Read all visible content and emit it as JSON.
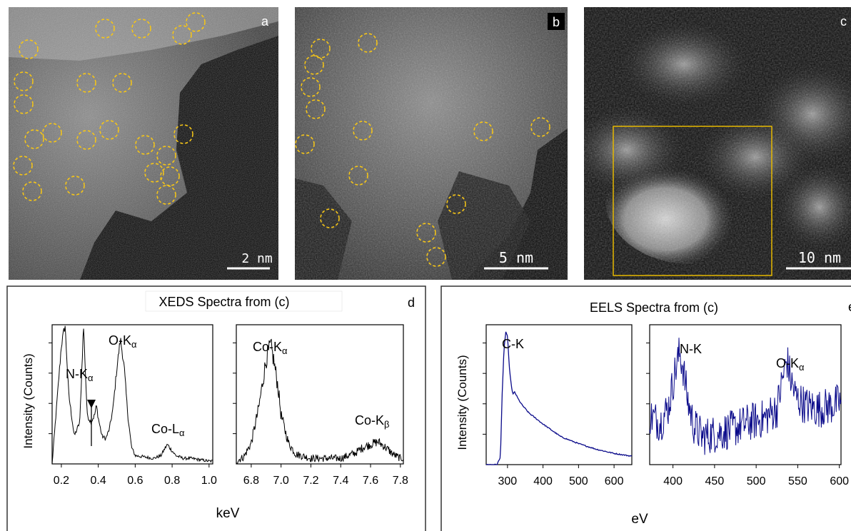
{
  "panels": {
    "a": {
      "letter": "a",
      "scale": "2 nm"
    },
    "b": {
      "letter": "b",
      "scale": "5 nm"
    },
    "c": {
      "letter": "c",
      "scale": "10 nm"
    },
    "d": {
      "letter": "d",
      "title": "XEDS Spectra from (c)"
    },
    "e": {
      "letter": "e",
      "title": "EELS Spectra from (c)"
    }
  },
  "colors": {
    "circle": "#f5c518",
    "box": "#e6b800",
    "eels_line": "#0a0a8a",
    "xeds_line": "#000000"
  },
  "chart_data": [
    {
      "type": "line",
      "panel": "d-left",
      "ylabel": "Intensity (Counts)",
      "xlabel": "keV",
      "xlim": [
        0.15,
        1.02
      ],
      "xticks": [
        "0.2",
        "0.4",
        "0.6",
        "0.8",
        "1.0"
      ],
      "annotations": [
        {
          "label": "N-Kα",
          "base": "N-K",
          "sub": "α",
          "x": 0.39
        },
        {
          "label": "O-Kα",
          "base": "O-K",
          "sub": "α",
          "x": 0.525
        },
        {
          "label": "Co-Lα",
          "base": "Co-L",
          "sub": "α",
          "x": 0.775
        }
      ],
      "x": [
        0.15,
        0.2,
        0.22,
        0.24,
        0.27,
        0.3,
        0.32,
        0.34,
        0.36,
        0.38,
        0.39,
        0.4,
        0.42,
        0.44,
        0.46,
        0.48,
        0.5,
        0.52,
        0.53,
        0.54,
        0.56,
        0.58,
        0.6,
        0.65,
        0.7,
        0.74,
        0.76,
        0.775,
        0.79,
        0.82,
        0.86,
        0.9,
        0.95,
        1.0
      ],
      "y": [
        0,
        0.85,
        1.0,
        0.5,
        0.2,
        0.3,
        1.0,
        0.35,
        0.3,
        0.35,
        0.42,
        0.33,
        0.2,
        0.18,
        0.25,
        0.4,
        0.68,
        0.9,
        0.8,
        0.7,
        0.35,
        0.12,
        0.06,
        0.05,
        0.04,
        0.06,
        0.11,
        0.14,
        0.11,
        0.06,
        0.04,
        0.04,
        0.03,
        0.02
      ]
    },
    {
      "type": "line",
      "panel": "d-right",
      "xlim": [
        6.7,
        7.82
      ],
      "xticks": [
        "6.8",
        "7.0",
        "7.2",
        "7.4",
        "7.6",
        "7.8"
      ],
      "annotations": [
        {
          "label": "Co-Kα",
          "base": "Co-K",
          "sub": "α",
          "x": 6.93
        },
        {
          "label": "Co-Kβ",
          "base": "Co-K",
          "sub": "β",
          "x": 7.64
        }
      ],
      "x": [
        6.7,
        6.75,
        6.8,
        6.85,
        6.9,
        6.93,
        6.95,
        6.98,
        7.0,
        7.05,
        7.1,
        7.2,
        7.3,
        7.4,
        7.5,
        7.55,
        7.6,
        7.65,
        7.7,
        7.75,
        7.8
      ],
      "y": [
        0.02,
        0.05,
        0.15,
        0.4,
        0.75,
        0.85,
        0.75,
        0.55,
        0.35,
        0.15,
        0.07,
        0.04,
        0.04,
        0.04,
        0.08,
        0.12,
        0.14,
        0.16,
        0.12,
        0.07,
        0.04
      ]
    },
    {
      "type": "line",
      "panel": "e-left",
      "ylabel": "Intensity (Counts)",
      "xlabel": "eV",
      "xlim": [
        240,
        650
      ],
      "xticks": [
        "300",
        "400",
        "500",
        "600"
      ],
      "annotations": [
        {
          "label": "C-K",
          "base": "C-K",
          "sub": "",
          "x": 300
        }
      ],
      "x": [
        250,
        270,
        280,
        285,
        290,
        295,
        300,
        305,
        310,
        315,
        320,
        330,
        340,
        360,
        400,
        450,
        500,
        550,
        600,
        650
      ],
      "y": [
        0,
        0,
        0.05,
        0.5,
        0.82,
        0.95,
        0.92,
        0.7,
        0.58,
        0.5,
        0.52,
        0.47,
        0.43,
        0.37,
        0.29,
        0.2,
        0.15,
        0.11,
        0.08,
        0.06
      ]
    },
    {
      "type": "line",
      "panel": "e-right",
      "xlim": [
        372,
        602
      ],
      "xticks": [
        "400",
        "450",
        "500",
        "550",
        "600"
      ],
      "annotations": [
        {
          "label": "N-K",
          "base": "N-K",
          "sub": "",
          "x": 410
        },
        {
          "label": "O-Kα",
          "base": "O-K",
          "sub": "α",
          "x": 545
        }
      ],
      "x": [
        372,
        385,
        395,
        402,
        408,
        412,
        418,
        425,
        435,
        450,
        470,
        490,
        510,
        525,
        532,
        537,
        542,
        548,
        560,
        575,
        590,
        602
      ],
      "y": [
        0.35,
        0.3,
        0.42,
        0.65,
        0.8,
        0.7,
        0.45,
        0.28,
        0.2,
        0.22,
        0.25,
        0.3,
        0.33,
        0.4,
        0.62,
        0.75,
        0.6,
        0.48,
        0.42,
        0.4,
        0.42,
        0.45
      ]
    }
  ]
}
